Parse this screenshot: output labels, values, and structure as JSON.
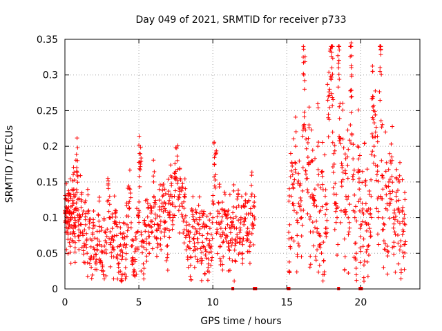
{
  "chart_data": {
    "type": "scatter",
    "title": "Day 049 of 2021, SRMTID for receiver p733",
    "xlabel": "GPS time / hours",
    "ylabel": "SRMTID / TECUs",
    "xlim": [
      0,
      24
    ],
    "ylim": [
      0,
      0.35
    ],
    "grid": true,
    "marker": "+",
    "color": "#ff0000",
    "xticks": [
      0,
      5,
      10,
      15,
      20
    ],
    "xtick_labels": [
      "0",
      "5",
      "10",
      "15",
      "20"
    ],
    "yticks": [
      0,
      0.05,
      0.1,
      0.15,
      0.2,
      0.25,
      0.3,
      0.35
    ],
    "ytick_labels": [
      "0",
      "0.05",
      "0.1",
      "0.15",
      "0.2",
      "0.25",
      "0.3",
      "0.35"
    ],
    "no_data_gap_hours": [
      12.9,
      15.1
    ],
    "zero_markers_x": [
      11.35,
      12.8,
      12.9,
      15.1,
      15.15,
      18.5,
      19.95,
      20.05
    ],
    "series": [
      {
        "name": "SRMTID",
        "points": [
          [
            0.0,
            0.11
          ],
          [
            0.05,
            0.095
          ],
          [
            0.1,
            0.125
          ],
          [
            0.15,
            0.08
          ],
          [
            0.2,
            0.1
          ],
          [
            0.25,
            0.115
          ],
          [
            0.3,
            0.09
          ],
          [
            0.35,
            0.13
          ],
          [
            0.4,
            0.07
          ],
          [
            0.45,
            0.105
          ],
          [
            0.5,
            0.12
          ],
          [
            0.55,
            0.085
          ],
          [
            0.6,
            0.14
          ],
          [
            0.65,
            0.1
          ],
          [
            0.7,
            0.065
          ],
          [
            0.75,
            0.11
          ],
          [
            0.8,
            0.17
          ],
          [
            0.85,
            0.18
          ],
          [
            0.9,
            0.095
          ],
          [
            0.95,
            0.075
          ],
          [
            1.0,
            0.1
          ],
          [
            1.1,
            0.125
          ],
          [
            1.2,
            0.08
          ],
          [
            1.3,
            0.06
          ],
          [
            1.4,
            0.09
          ],
          [
            1.5,
            0.05
          ],
          [
            1.6,
            0.11
          ],
          [
            1.7,
            0.07
          ],
          [
            1.8,
            0.045
          ],
          [
            1.9,
            0.085
          ],
          [
            2.0,
            0.055
          ],
          [
            2.1,
            0.035
          ],
          [
            2.2,
            0.07
          ],
          [
            2.3,
            0.095
          ],
          [
            2.4,
            0.04
          ],
          [
            2.5,
            0.06
          ],
          [
            2.6,
            0.02
          ],
          [
            2.7,
            0.08
          ],
          [
            2.8,
            0.05
          ],
          [
            2.9,
            0.155
          ],
          [
            3.0,
            0.1
          ],
          [
            3.1,
            0.065
          ],
          [
            3.2,
            0.085
          ],
          [
            3.3,
            0.045
          ],
          [
            3.4,
            0.11
          ],
          [
            3.5,
            0.075
          ],
          [
            3.6,
            0.035
          ],
          [
            3.7,
            0.06
          ],
          [
            3.8,
            0.02
          ],
          [
            3.9,
            0.045
          ],
          [
            4.0,
            0.07
          ],
          [
            4.1,
            0.03
          ],
          [
            4.2,
            0.09
          ],
          [
            4.3,
            0.12
          ],
          [
            4.4,
            0.14
          ],
          [
            4.5,
            0.06
          ],
          [
            4.6,
            0.04
          ],
          [
            4.7,
            0.025
          ],
          [
            4.8,
            0.055
          ],
          [
            4.9,
            0.08
          ],
          [
            5.0,
            0.11
          ],
          [
            5.05,
            0.19
          ],
          [
            5.1,
            0.175
          ],
          [
            5.2,
            0.06
          ],
          [
            5.3,
            0.035
          ],
          [
            5.4,
            0.09
          ],
          [
            5.5,
            0.07
          ],
          [
            5.6,
            0.12
          ],
          [
            5.7,
            0.05
          ],
          [
            5.8,
            0.095
          ],
          [
            5.9,
            0.08
          ],
          [
            6.0,
            0.15
          ],
          [
            6.1,
            0.105
          ],
          [
            6.2,
            0.07
          ],
          [
            6.3,
            0.09
          ],
          [
            6.4,
            0.115
          ],
          [
            6.5,
            0.08
          ],
          [
            6.6,
            0.13
          ],
          [
            6.7,
            0.095
          ],
          [
            6.8,
            0.11
          ],
          [
            6.9,
            0.06
          ],
          [
            7.0,
            0.12
          ],
          [
            7.1,
            0.1
          ],
          [
            7.2,
            0.145
          ],
          [
            7.3,
            0.09
          ],
          [
            7.4,
            0.13
          ],
          [
            7.5,
            0.165
          ],
          [
            7.6,
            0.18
          ],
          [
            7.7,
            0.11
          ],
          [
            7.8,
            0.155
          ],
          [
            7.9,
            0.12
          ],
          [
            8.0,
            0.095
          ],
          [
            8.1,
            0.13
          ],
          [
            8.2,
            0.075
          ],
          [
            8.3,
            0.06
          ],
          [
            8.4,
            0.09
          ],
          [
            8.5,
            0.045
          ],
          [
            8.6,
            0.11
          ],
          [
            8.7,
            0.07
          ],
          [
            8.8,
            0.055
          ],
          [
            8.9,
            0.08
          ],
          [
            9.0,
            0.065
          ],
          [
            9.1,
            0.1
          ],
          [
            9.2,
            0.04
          ],
          [
            9.3,
            0.075
          ],
          [
            9.4,
            0.09
          ],
          [
            9.5,
            0.055
          ],
          [
            9.6,
            0.07
          ],
          [
            9.7,
            0.035
          ],
          [
            9.8,
            0.085
          ],
          [
            9.9,
            0.06
          ],
          [
            10.0,
            0.1
          ],
          [
            10.1,
            0.175
          ],
          [
            10.2,
            0.16
          ],
          [
            10.3,
            0.08
          ],
          [
            10.4,
            0.12
          ],
          [
            10.5,
            0.06
          ],
          [
            10.6,
            0.095
          ],
          [
            10.7,
            0.045
          ],
          [
            10.8,
            0.11
          ],
          [
            10.9,
            0.075
          ],
          [
            11.0,
            0.09
          ],
          [
            11.1,
            0.055
          ],
          [
            11.2,
            0.1
          ],
          [
            11.3,
            0.07
          ],
          [
            11.4,
            0.115
          ],
          [
            11.5,
            0.04
          ],
          [
            11.6,
            0.085
          ],
          [
            11.7,
            0.13
          ],
          [
            11.8,
            0.065
          ],
          [
            11.9,
            0.1
          ],
          [
            12.0,
            0.05
          ],
          [
            12.1,
            0.09
          ],
          [
            12.2,
            0.12
          ],
          [
            12.3,
            0.075
          ],
          [
            12.4,
            0.105
          ],
          [
            12.5,
            0.06
          ],
          [
            12.6,
            0.13
          ],
          [
            12.7,
            0.085
          ],
          [
            12.8,
            0.115
          ],
          [
            15.15,
            0.025
          ],
          [
            15.2,
            0.09
          ],
          [
            15.3,
            0.13
          ],
          [
            15.4,
            0.16
          ],
          [
            15.5,
            0.11
          ],
          [
            15.6,
            0.2
          ],
          [
            15.7,
            0.075
          ],
          [
            15.8,
            0.12
          ],
          [
            15.9,
            0.145
          ],
          [
            16.0,
            0.1
          ],
          [
            16.1,
            0.17
          ],
          [
            16.15,
            0.3
          ],
          [
            16.2,
            0.28
          ],
          [
            16.3,
            0.21
          ],
          [
            16.4,
            0.155
          ],
          [
            16.5,
            0.23
          ],
          [
            16.6,
            0.08
          ],
          [
            16.7,
            0.18
          ],
          [
            16.8,
            0.12
          ],
          [
            16.9,
            0.14
          ],
          [
            17.0,
            0.095
          ],
          [
            17.1,
            0.2
          ],
          [
            17.2,
            0.06
          ],
          [
            17.3,
            0.11
          ],
          [
            17.4,
            0.165
          ],
          [
            17.5,
            0.04
          ],
          [
            17.6,
            0.13
          ],
          [
            17.7,
            0.085
          ],
          [
            17.8,
            0.24
          ],
          [
            17.9,
            0.28
          ],
          [
            18.0,
            0.34
          ],
          [
            18.05,
            0.31
          ],
          [
            18.1,
            0.22
          ],
          [
            18.2,
            0.175
          ],
          [
            18.3,
            0.12
          ],
          [
            18.4,
            0.1
          ],
          [
            18.5,
            0.31
          ],
          [
            18.55,
            0.335
          ],
          [
            18.6,
            0.26
          ],
          [
            18.7,
            0.15
          ],
          [
            18.8,
            0.21
          ],
          [
            18.9,
            0.07
          ],
          [
            19.0,
            0.13
          ],
          [
            19.1,
            0.185
          ],
          [
            19.2,
            0.08
          ],
          [
            19.3,
            0.23
          ],
          [
            19.35,
            0.345
          ],
          [
            19.4,
            0.27
          ],
          [
            19.5,
            0.16
          ],
          [
            19.6,
            0.1
          ],
          [
            19.7,
            0.05
          ],
          [
            19.8,
            0.2
          ],
          [
            19.9,
            0.14
          ],
          [
            20.0,
            0.09
          ],
          [
            20.1,
            0.12
          ],
          [
            20.2,
            0.07
          ],
          [
            20.3,
            0.15
          ],
          [
            20.4,
            0.11
          ],
          [
            20.5,
            0.06
          ],
          [
            20.6,
            0.085
          ],
          [
            20.7,
            0.13
          ],
          [
            20.8,
            0.27
          ],
          [
            20.85,
            0.25
          ],
          [
            20.9,
            0.2
          ],
          [
            21.0,
            0.22
          ],
          [
            21.1,
            0.16
          ],
          [
            21.2,
            0.1
          ],
          [
            21.3,
            0.305
          ],
          [
            21.35,
            0.335
          ],
          [
            21.4,
            0.18
          ],
          [
            21.5,
            0.14
          ],
          [
            21.6,
            0.09
          ],
          [
            21.7,
            0.165
          ],
          [
            21.8,
            0.06
          ],
          [
            21.9,
            0.15
          ],
          [
            22.0,
            0.12
          ],
          [
            22.1,
            0.185
          ],
          [
            22.2,
            0.1
          ],
          [
            22.3,
            0.08
          ],
          [
            22.4,
            0.13
          ],
          [
            22.5,
            0.095
          ],
          [
            22.6,
            0.15
          ],
          [
            22.7,
            0.06
          ],
          [
            22.8,
            0.11
          ],
          [
            22.9,
            0.045
          ],
          [
            23.0,
            0.09
          ]
        ]
      }
    ]
  }
}
